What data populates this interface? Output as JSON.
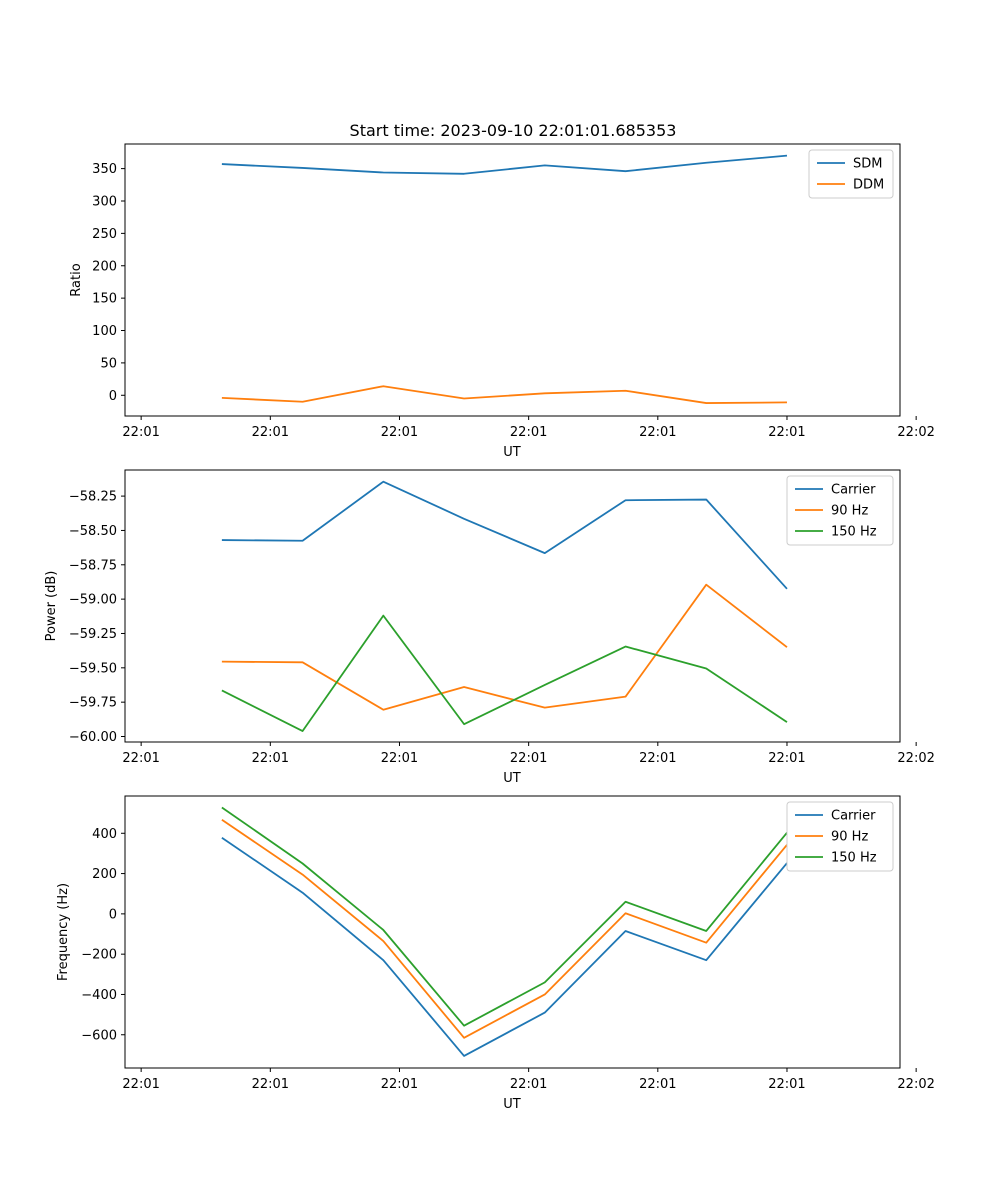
{
  "chart_data": [
    {
      "type": "line",
      "title": "Start time: 2023-09-10 22:01:01.685353",
      "xlabel": "UT",
      "ylabel": "Ratio",
      "x": [
        0.5,
        1.0,
        1.5,
        2.0,
        2.5,
        3.0,
        3.5,
        4.0
      ],
      "xlim": [
        -0.1,
        4.7
      ],
      "x_ticks": [
        0,
        0.8,
        1.6,
        2.4,
        3.2,
        4.0,
        4.8
      ],
      "x_tick_labels": [
        "22:01",
        "22:01",
        "22:01",
        "22:01",
        "22:01",
        "22:01",
        "22:02"
      ],
      "ylim": [
        -32,
        388
      ],
      "y_ticks": [
        0,
        50,
        100,
        150,
        200,
        250,
        300,
        350
      ],
      "y_tick_labels": [
        "0",
        "50",
        "100",
        "150",
        "200",
        "250",
        "300",
        "350"
      ],
      "legend_position": "top-right",
      "series": [
        {
          "name": "SDM",
          "color": "#1f77b4",
          "values": [
            357,
            351,
            344,
            342,
            355,
            346,
            359,
            370
          ]
        },
        {
          "name": "DDM",
          "color": "#ff7f0e",
          "values": [
            -4,
            -10,
            14,
            -5,
            3,
            7,
            -12,
            -11
          ]
        }
      ]
    },
    {
      "type": "line",
      "title": "",
      "xlabel": "UT",
      "ylabel": "Power (dB)",
      "x": [
        0.5,
        1.0,
        1.5,
        2.0,
        2.5,
        3.0,
        3.5,
        4.0
      ],
      "xlim": [
        -0.1,
        4.7
      ],
      "x_ticks": [
        0,
        0.8,
        1.6,
        2.4,
        3.2,
        4.0,
        4.8
      ],
      "x_tick_labels": [
        "22:01",
        "22:01",
        "22:01",
        "22:01",
        "22:01",
        "22:01",
        "22:02"
      ],
      "ylim": [
        -60.04,
        -58.06
      ],
      "y_ticks": [
        -60.0,
        -59.75,
        -59.5,
        -59.25,
        -59.0,
        -58.75,
        -58.5,
        -58.25
      ],
      "y_tick_labels": [
        "−60.00",
        "−59.75",
        "−59.50",
        "−59.25",
        "−59.00",
        "−58.75",
        "−58.50",
        "−58.25"
      ],
      "legend_position": "top-right",
      "series": [
        {
          "name": "Carrier",
          "color": "#1f77b4",
          "values": [
            -58.57,
            -58.575,
            -58.145,
            -58.415,
            -58.665,
            -58.28,
            -58.275,
            -58.925
          ]
        },
        {
          "name": "90 Hz",
          "color": "#ff7f0e",
          "values": [
            -59.455,
            -59.46,
            -59.805,
            -59.64,
            -59.79,
            -59.71,
            -58.895,
            -59.35
          ]
        },
        {
          "name": "150 Hz",
          "color": "#2ca02c",
          "values": [
            -59.665,
            -59.96,
            -59.12,
            -59.91,
            -59.625,
            -59.345,
            -59.505,
            -59.895
          ]
        }
      ]
    },
    {
      "type": "line",
      "title": "",
      "xlabel": "UT",
      "ylabel": "Frequency (Hz)",
      "x": [
        0.5,
        1.0,
        1.5,
        2.0,
        2.5,
        3.0,
        3.5,
        4.0
      ],
      "xlim": [
        -0.1,
        4.7
      ],
      "x_ticks": [
        0,
        0.8,
        1.6,
        2.4,
        3.2,
        4.0,
        4.8
      ],
      "x_tick_labels": [
        "22:01",
        "22:01",
        "22:01",
        "22:01",
        "22:01",
        "22:01",
        "22:02"
      ],
      "ylim": [
        -765,
        585
      ],
      "y_ticks": [
        -600,
        -400,
        -200,
        0,
        200,
        400
      ],
      "y_tick_labels": [
        "−600",
        "−400",
        "−200",
        "0",
        "200",
        "400"
      ],
      "legend_position": "top-right",
      "series": [
        {
          "name": "Carrier",
          "color": "#1f77b4",
          "values": [
            378,
            105,
            -230,
            -705,
            -490,
            -85,
            -230,
            252
          ]
        },
        {
          "name": "90 Hz",
          "color": "#ff7f0e",
          "values": [
            467,
            195,
            -135,
            -615,
            -400,
            3,
            -143,
            343
          ]
        },
        {
          "name": "150 Hz",
          "color": "#2ca02c",
          "values": [
            528,
            250,
            -80,
            -555,
            -340,
            60,
            -85,
            403
          ]
        }
      ]
    }
  ]
}
